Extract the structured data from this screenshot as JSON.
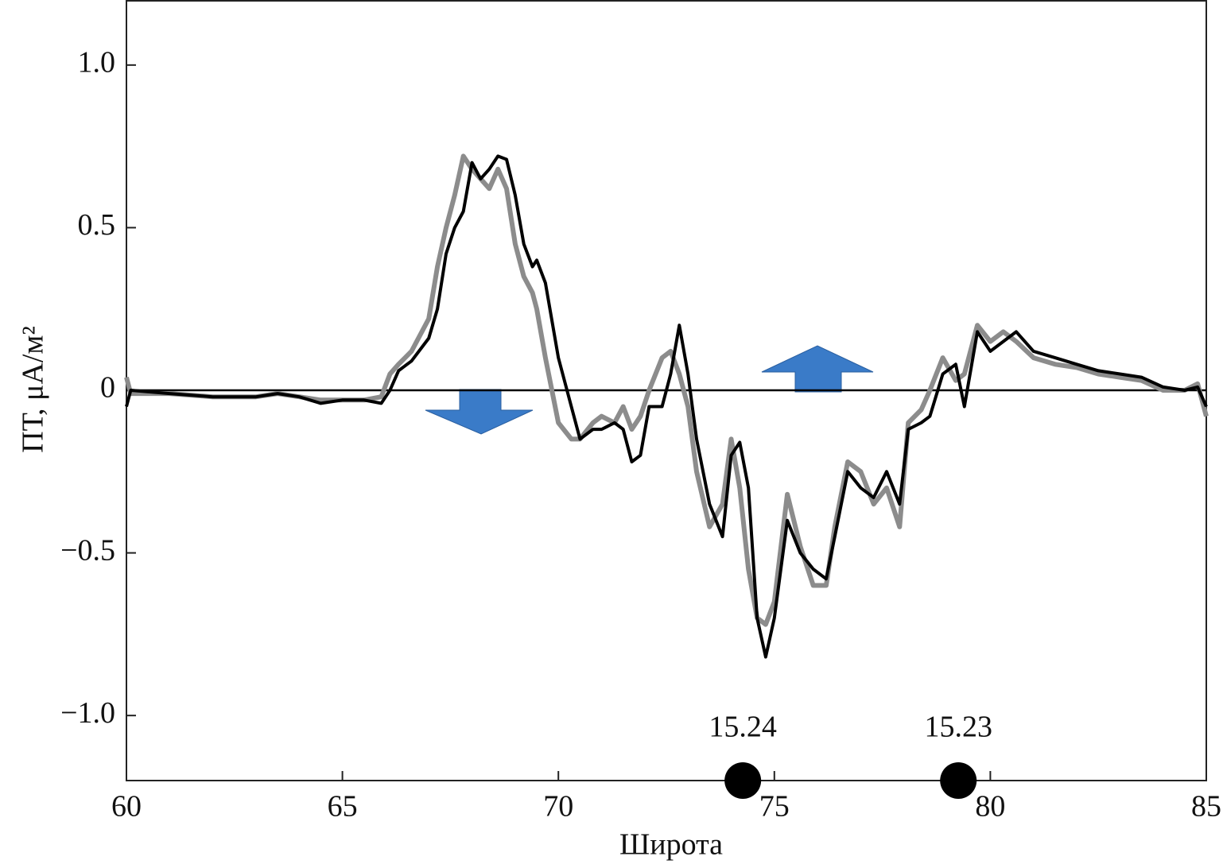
{
  "chart_data": {
    "type": "line",
    "x_label": "Широта",
    "y_label": "ПТ, μА/м²",
    "x": [
      60,
      60.1,
      61,
      62,
      63,
      63.5,
      64,
      64.5,
      65,
      65.5,
      65.9,
      66.1,
      66.3,
      66.6,
      67,
      67.2,
      67.4,
      67.6,
      67.8,
      68,
      68.2,
      68.4,
      68.6,
      68.8,
      69,
      69.2,
      69.4,
      69.5,
      69.7,
      70,
      70.3,
      70.5,
      70.8,
      71,
      71.3,
      71.5,
      71.7,
      71.9,
      72.1,
      72.4,
      72.6,
      72.8,
      73,
      73.2,
      73.5,
      73.8,
      74,
      74.2,
      74.4,
      74.6,
      74.8,
      75,
      75.3,
      75.6,
      75.9,
      76.2,
      76.4,
      76.7,
      77,
      77.3,
      77.6,
      77.9,
      78.1,
      78.4,
      78.6,
      78.9,
      79.2,
      79.4,
      79.7,
      80,
      80.3,
      80.6,
      81,
      81.5,
      82,
      82.5,
      83,
      83.5,
      84,
      84.5,
      84.8,
      85
    ],
    "series": [
      {
        "color": "#8c8c8c",
        "values": [
          0.04,
          -0.01,
          -0.01,
          -0.02,
          -0.02,
          -0.01,
          -0.02,
          -0.03,
          -0.03,
          -0.03,
          -0.02,
          0.05,
          0.08,
          0.12,
          0.22,
          0.38,
          0.5,
          0.6,
          0.72,
          0.68,
          0.65,
          0.62,
          0.68,
          0.62,
          0.45,
          0.35,
          0.3,
          0.25,
          0.1,
          -0.1,
          -0.15,
          -0.15,
          -0.1,
          -0.08,
          -0.1,
          -0.05,
          -0.12,
          -0.08,
          0.0,
          0.1,
          0.12,
          0.05,
          -0.05,
          -0.25,
          -0.42,
          -0.35,
          -0.15,
          -0.3,
          -0.55,
          -0.7,
          -0.72,
          -0.65,
          -0.32,
          -0.48,
          -0.6,
          -0.6,
          -0.42,
          -0.22,
          -0.25,
          -0.35,
          -0.3,
          -0.42,
          -0.1,
          -0.06,
          0.0,
          0.1,
          0.03,
          0.05,
          0.2,
          0.15,
          0.18,
          0.15,
          0.1,
          0.08,
          0.07,
          0.05,
          0.04,
          0.03,
          0.0,
          0.0,
          0.02,
          -0.08
        ]
      },
      {
        "color": "#000000",
        "values": [
          -0.05,
          0,
          -0.01,
          -0.02,
          -0.02,
          -0.01,
          -0.02,
          -0.04,
          -0.03,
          -0.03,
          -0.04,
          0,
          0.06,
          0.09,
          0.16,
          0.25,
          0.42,
          0.5,
          0.55,
          0.7,
          0.65,
          0.68,
          0.72,
          0.71,
          0.6,
          0.45,
          0.38,
          0.4,
          0.33,
          0.1,
          -0.05,
          -0.15,
          -0.12,
          -0.12,
          -0.1,
          -0.12,
          -0.22,
          -0.2,
          -0.05,
          -0.05,
          0.05,
          0.2,
          0.05,
          -0.15,
          -0.35,
          -0.45,
          -0.2,
          -0.16,
          -0.3,
          -0.7,
          -0.82,
          -0.7,
          -0.4,
          -0.5,
          -0.55,
          -0.58,
          -0.45,
          -0.25,
          -0.3,
          -0.33,
          -0.25,
          -0.35,
          -0.12,
          -0.1,
          -0.08,
          0.05,
          0.08,
          -0.05,
          0.18,
          0.12,
          0.15,
          0.18,
          0.12,
          0.1,
          0.08,
          0.06,
          0.05,
          0.04,
          0.01,
          0,
          0.01,
          -0.05
        ]
      }
    ],
    "markers": [
      {
        "x": 74.27,
        "label": "15.24"
      },
      {
        "x": 79.26,
        "label": "15.23"
      }
    ],
    "xlim": [
      60,
      85
    ],
    "xticks": [
      60,
      65,
      70,
      75,
      80,
      85
    ],
    "ylim": [
      -1.2,
      1.2
    ],
    "yticks": [
      {
        "value": -1,
        "label": "−1.0"
      },
      {
        "value": -0.5,
        "label": "−0.5"
      },
      0,
      0.5,
      {
        "value": 1,
        "label": "1.0"
      }
    ],
    "zero_line": true
  }
}
